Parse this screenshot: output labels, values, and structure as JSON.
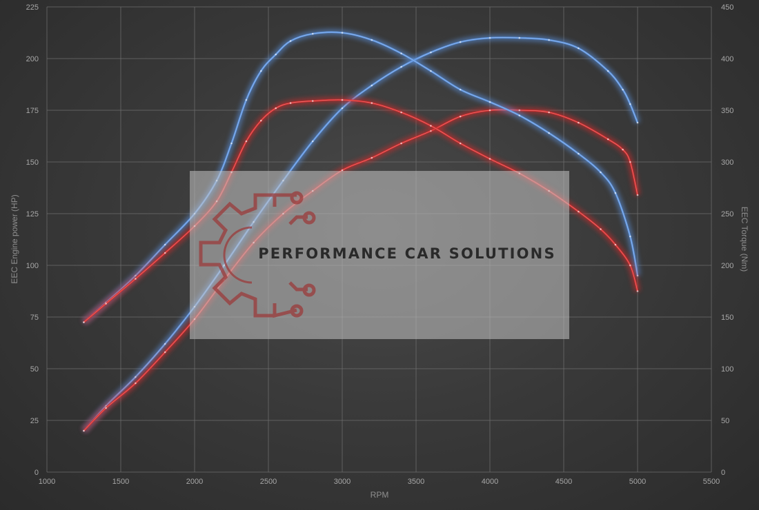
{
  "chart_data": {
    "type": "line",
    "xlabel": "RPM",
    "ylabel_left": "EEC Engine power (HP)",
    "ylabel_right": "EEC Torque (Nm)",
    "xlim": [
      1000,
      5500
    ],
    "xticks": [
      1000,
      1500,
      2000,
      2500,
      3000,
      3500,
      4000,
      4500,
      5000,
      5500
    ],
    "ylim_left": [
      0,
      225
    ],
    "yticks_left": [
      0,
      25,
      50,
      75,
      100,
      125,
      150,
      175,
      200,
      225
    ],
    "ylim_right": [
      0,
      450
    ],
    "yticks_right": [
      0,
      50,
      100,
      150,
      200,
      250,
      300,
      350,
      400,
      450
    ],
    "grid": true,
    "series": [
      {
        "color": "#5b93e0",
        "axis": "left",
        "x": [
          1250,
          1400,
          1600,
          1800,
          2000,
          2200,
          2400,
          2600,
          2800,
          3000,
          3200,
          3400,
          3600,
          3800,
          4000,
          4200,
          4400,
          4600,
          4800,
          4900,
          4950,
          5000
        ],
        "y": [
          20,
          32,
          46,
          62,
          80,
          100,
          121,
          141,
          160,
          176,
          187,
          196,
          203,
          208,
          210,
          210,
          209,
          205,
          194,
          185,
          178,
          169
        ]
      },
      {
        "color": "#d42a2a",
        "axis": "left",
        "x": [
          1250,
          1400,
          1600,
          1800,
          2000,
          2200,
          2400,
          2600,
          2800,
          3000,
          3200,
          3400,
          3600,
          3800,
          4000,
          4200,
          4400,
          4600,
          4800,
          4900,
          4950,
          5000
        ],
        "y": [
          20,
          31,
          43,
          58,
          74,
          93,
          111,
          125,
          136,
          146,
          152,
          159,
          165,
          172,
          175,
          175,
          174,
          169,
          161,
          156,
          150,
          134
        ]
      },
      {
        "color": "#5b93e0",
        "axis": "right",
        "x": [
          1250,
          1400,
          1600,
          1800,
          2000,
          2150,
          2250,
          2350,
          2450,
          2550,
          2650,
          2800,
          3000,
          3200,
          3400,
          3600,
          3800,
          4000,
          4200,
          4400,
          4600,
          4750,
          4850,
          4950,
          5000
        ],
        "y": [
          145,
          164,
          190,
          220,
          250,
          282,
          318,
          360,
          388,
          404,
          417,
          424,
          425,
          418,
          405,
          388,
          370,
          358,
          345,
          328,
          308,
          290,
          270,
          228,
          190
        ]
      },
      {
        "color": "#d42a2a",
        "axis": "right",
        "x": [
          1250,
          1400,
          1600,
          1800,
          2000,
          2150,
          2250,
          2350,
          2450,
          2550,
          2650,
          2800,
          3000,
          3200,
          3400,
          3600,
          3800,
          4000,
          4200,
          4400,
          4600,
          4750,
          4850,
          4950,
          5000
        ],
        "y": [
          145,
          163,
          187,
          212,
          238,
          262,
          290,
          320,
          340,
          352,
          357,
          359,
          360,
          357,
          348,
          335,
          318,
          303,
          289,
          272,
          252,
          235,
          220,
          200,
          175
        ]
      }
    ]
  },
  "watermark": {
    "text": "PERFORMANCE CAR SOLUTIONS",
    "logo": "gear-circuit-logo",
    "logo_color": "#9b3b3b"
  }
}
